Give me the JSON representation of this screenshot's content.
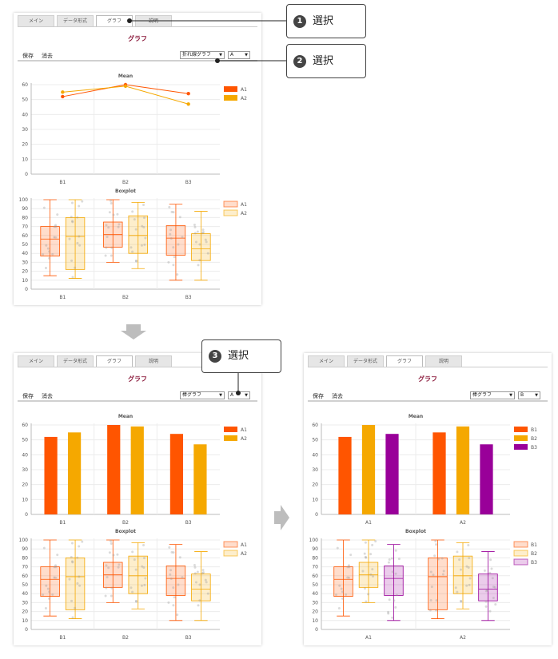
{
  "tabs": [
    "メイン",
    "データ形式",
    "グラフ",
    "説明"
  ],
  "page_title": "グラフ",
  "toolbar": {
    "save": "保存",
    "clear": "消去"
  },
  "callouts": [
    {
      "num": "1",
      "text": "選択"
    },
    {
      "num": "2",
      "text": "選択"
    },
    {
      "num": "3",
      "text": "選択"
    }
  ],
  "panels": [
    {
      "graph_select": "折れ線グラフ",
      "group_select": "A"
    },
    {
      "graph_select": "棒グラフ",
      "group_select": "A"
    },
    {
      "graph_select": "棒グラフ",
      "group_select": "B"
    }
  ],
  "colors": {
    "A1": "#ff5500",
    "A2": "#f5a800",
    "B1": "#ff5500",
    "B2": "#f5a800",
    "B3": "#990099",
    "title": "#8b1a3c",
    "arrow": "#bdbdbd"
  },
  "chart_data": [
    {
      "type": "line",
      "title": "Mean",
      "categories": [
        "B1",
        "B2",
        "B3"
      ],
      "ylim": [
        0,
        60
      ],
      "yticks": [
        0,
        10,
        20,
        30,
        40,
        50,
        60
      ],
      "series": [
        {
          "name": "A1",
          "values": [
            52,
            60,
            54
          ]
        },
        {
          "name": "A2",
          "values": [
            55,
            59,
            47
          ]
        }
      ],
      "legend": "top-right"
    },
    {
      "type": "boxplot",
      "title": "Boxplot",
      "categories": [
        "B1",
        "B2",
        "B3"
      ],
      "ylim": [
        0,
        100
      ],
      "yticks": [
        0,
        10,
        20,
        30,
        40,
        50,
        60,
        70,
        80,
        90,
        100
      ],
      "series": [
        {
          "name": "A1",
          "boxes": [
            {
              "min": 15,
              "q1": 37,
              "median": 56,
              "q3": 70,
              "max": 100
            },
            {
              "min": 30,
              "q1": 47,
              "median": 61,
              "q3": 75,
              "max": 100
            },
            {
              "min": 10,
              "q1": 38,
              "median": 57,
              "q3": 71,
              "max": 95
            }
          ]
        },
        {
          "name": "A2",
          "boxes": [
            {
              "min": 12,
              "q1": 22,
              "median": 59,
              "q3": 80,
              "max": 100
            },
            {
              "min": 23,
              "q1": 40,
              "median": 60,
              "q3": 82,
              "max": 97
            },
            {
              "min": 10,
              "q1": 32,
              "median": 45,
              "q3": 62,
              "max": 87
            }
          ]
        }
      ],
      "legend": "top-right"
    },
    {
      "type": "bar",
      "title": "Mean",
      "categories": [
        "B1",
        "B2",
        "B3"
      ],
      "ylim": [
        0,
        60
      ],
      "yticks": [
        0,
        10,
        20,
        30,
        40,
        50,
        60
      ],
      "series": [
        {
          "name": "A1",
          "values": [
            52,
            60,
            54
          ]
        },
        {
          "name": "A2",
          "values": [
            55,
            59,
            47
          ]
        }
      ],
      "legend": "top-right"
    },
    {
      "type": "boxplot",
      "title": "Boxplot",
      "categories": [
        "B1",
        "B2",
        "B3"
      ],
      "ylim": [
        0,
        100
      ],
      "yticks": [
        0,
        10,
        20,
        30,
        40,
        50,
        60,
        70,
        80,
        90,
        100
      ],
      "series": [
        {
          "name": "A1",
          "boxes": [
            {
              "min": 15,
              "q1": 37,
              "median": 56,
              "q3": 70,
              "max": 100
            },
            {
              "min": 30,
              "q1": 47,
              "median": 61,
              "q3": 75,
              "max": 100
            },
            {
              "min": 10,
              "q1": 38,
              "median": 57,
              "q3": 71,
              "max": 95
            }
          ]
        },
        {
          "name": "A2",
          "boxes": [
            {
              "min": 12,
              "q1": 22,
              "median": 59,
              "q3": 80,
              "max": 100
            },
            {
              "min": 23,
              "q1": 40,
              "median": 60,
              "q3": 82,
              "max": 97
            },
            {
              "min": 10,
              "q1": 32,
              "median": 45,
              "q3": 62,
              "max": 87
            }
          ]
        }
      ],
      "legend": "top-right"
    },
    {
      "type": "bar",
      "title": "Mean",
      "categories": [
        "A1",
        "A2"
      ],
      "ylim": [
        0,
        60
      ],
      "yticks": [
        0,
        10,
        20,
        30,
        40,
        50,
        60
      ],
      "series": [
        {
          "name": "B1",
          "values": [
            52,
            55
          ]
        },
        {
          "name": "B2",
          "values": [
            60,
            59
          ]
        },
        {
          "name": "B3",
          "values": [
            54,
            47
          ]
        }
      ],
      "legend": "top-right"
    },
    {
      "type": "boxplot",
      "title": "Boxplot",
      "categories": [
        "A1",
        "A2"
      ],
      "ylim": [
        0,
        100
      ],
      "yticks": [
        0,
        10,
        20,
        30,
        40,
        50,
        60,
        70,
        80,
        90,
        100
      ],
      "series": [
        {
          "name": "B1",
          "boxes": [
            {
              "min": 15,
              "q1": 37,
              "median": 56,
              "q3": 70,
              "max": 100
            },
            {
              "min": 12,
              "q1": 22,
              "median": 59,
              "q3": 80,
              "max": 100
            }
          ]
        },
        {
          "name": "B2",
          "boxes": [
            {
              "min": 30,
              "q1": 47,
              "median": 61,
              "q3": 75,
              "max": 100
            },
            {
              "min": 23,
              "q1": 40,
              "median": 60,
              "q3": 82,
              "max": 97
            }
          ]
        },
        {
          "name": "B3",
          "boxes": [
            {
              "min": 10,
              "q1": 38,
              "median": 57,
              "q3": 71,
              "max": 95
            },
            {
              "min": 10,
              "q1": 32,
              "median": 45,
              "q3": 62,
              "max": 87
            }
          ]
        }
      ],
      "legend": "top-right"
    }
  ]
}
